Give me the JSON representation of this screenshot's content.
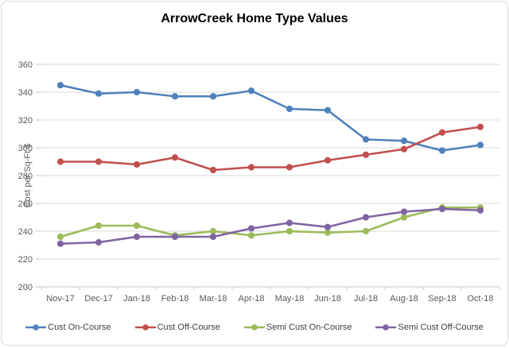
{
  "chart_data": {
    "type": "line",
    "title": "ArrowCreek Home Type Values",
    "ylabel": "Cost per Sq-Ft $",
    "xlabel": "",
    "categories": [
      "Nov-17",
      "Dec-17",
      "Jan-18",
      "Feb-18",
      "Mar-18",
      "Apr-18",
      "May-18",
      "Jun-18",
      "Jul-18",
      "Aug-18",
      "Sep-18",
      "Oct-18"
    ],
    "ylim": [
      200,
      360
    ],
    "yticks": [
      360,
      340,
      320,
      300,
      280,
      260,
      240,
      220,
      200
    ],
    "grid": true,
    "legend_position": "bottom",
    "series": [
      {
        "name": "Cust On-Course",
        "color": "#4F81BD",
        "values": [
          345,
          339,
          340,
          337,
          337,
          341,
          328,
          327,
          306,
          305,
          298,
          302
        ]
      },
      {
        "name": "Cust Off-Course",
        "color": "#C0504D",
        "values": [
          290,
          290,
          288,
          293,
          284,
          286,
          286,
          291,
          295,
          299,
          311,
          315
        ]
      },
      {
        "name": "Semi Cust On-Course",
        "color": "#9BBB59",
        "values": [
          236,
          244,
          244,
          237,
          240,
          237,
          240,
          239,
          240,
          250,
          257,
          257
        ]
      },
      {
        "name": "Semi Cust Off-Course",
        "color": "#8064A2",
        "values": [
          231,
          232,
          236,
          236,
          236,
          242,
          246,
          243,
          250,
          254,
          256,
          255
        ]
      }
    ]
  },
  "colors": {
    "gridline": "#D9D9D9",
    "axis_line": "#C6C6C6",
    "tick_text": "#595959",
    "title_text": "#000000",
    "legend_text": "#404040",
    "background": "#FFFFFF",
    "frame_border": "#D9D9D9"
  }
}
